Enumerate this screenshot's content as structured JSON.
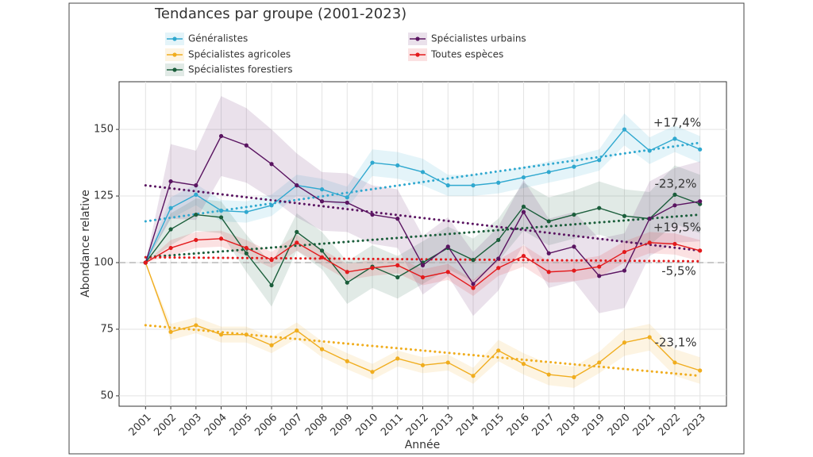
{
  "chart_data": {
    "type": "line",
    "title": "Tendances par groupe (2001-2023)",
    "x_label": "Année",
    "y_label": "Abondance relative",
    "x": [
      2001,
      2002,
      2003,
      2004,
      2005,
      2006,
      2007,
      2008,
      2009,
      2010,
      2011,
      2012,
      2013,
      2014,
      2015,
      2016,
      2017,
      2018,
      2019,
      2020,
      2021,
      2022,
      2023
    ],
    "xlim": [
      1999.95,
      2024.05
    ],
    "xticks": [
      2001,
      2002,
      2003,
      2004,
      2005,
      2006,
      2007,
      2008,
      2009,
      2010,
      2011,
      2012,
      2013,
      2014,
      2015,
      2016,
      2017,
      2018,
      2019,
      2020,
      2021,
      2022,
      2023
    ],
    "ylim": [
      46.1,
      167.9
    ],
    "yticks": [
      50,
      75,
      100,
      125,
      150
    ],
    "reference_line": 100,
    "grid": true,
    "series": [
      {
        "name": "Généralistes",
        "color": "#2fa8cf",
        "label_color": "#52bde6",
        "values": [
          100,
          120.5,
          125.5,
          119.5,
          119,
          121.5,
          129,
          127.5,
          124.5,
          137.5,
          136.5,
          134,
          129,
          129,
          130,
          132,
          134,
          136,
          138.5,
          150,
          142,
          146.5,
          142.5
        ],
        "ci": [
          0,
          4,
          4,
          4,
          4,
          4,
          4,
          4,
          4,
          5,
          5,
          5,
          4,
          4,
          4,
          4,
          4,
          4,
          4,
          6,
          5,
          5,
          5
        ],
        "trend": [
          115.5,
          145
        ],
        "trend_label": "+17,4%"
      },
      {
        "name": "Spécialistes agricoles",
        "color": "#f0ad1e",
        "label_color": "#f2b62b",
        "values": [
          100,
          74,
          76.5,
          73,
          73,
          69,
          74.5,
          67.5,
          63,
          59,
          64,
          61.5,
          62.5,
          57.5,
          67,
          62,
          58,
          57,
          62.5,
          70,
          72,
          62.5,
          59.5
        ],
        "ci": [
          0,
          3,
          3,
          3,
          3,
          3,
          3,
          3,
          3,
          3,
          3,
          3,
          3,
          3,
          4,
          4,
          4,
          4,
          4,
          5,
          5,
          5,
          5
        ],
        "trend": [
          76.5,
          57.5
        ],
        "trend_label": "-23,1%"
      },
      {
        "name": "Spécialistes forestiers",
        "color": "#1b5e3b",
        "label_color": "#2f5a22",
        "values": [
          100,
          112.5,
          118,
          117,
          103.5,
          91.5,
          111.5,
          104.5,
          92.5,
          98.5,
          94.5,
          100,
          105.5,
          101,
          108.5,
          121,
          115.5,
          118,
          120.5,
          117.5,
          116.5,
          125.5,
          122
        ],
        "ci": [
          0,
          6,
          6,
          6,
          7,
          8,
          7,
          7,
          8,
          8,
          8,
          8,
          8,
          8,
          8,
          9,
          9,
          9,
          10,
          10,
          10,
          11,
          11
        ],
        "trend": [
          102,
          118
        ],
        "trend_label": "+19,5%"
      },
      {
        "name": "Spécialistes urbains",
        "color": "#5a1461",
        "label_color": "#6b35a8",
        "values": [
          100,
          130.5,
          129,
          147.5,
          144,
          137,
          129,
          123,
          122.5,
          118,
          116.5,
          99,
          106,
          92,
          101.5,
          119,
          103.5,
          106,
          95,
          97,
          116.5,
          121.5,
          123
        ],
        "ci": [
          0,
          14,
          13,
          15,
          14,
          13,
          12,
          11,
          11,
          11,
          11,
          11,
          11,
          12,
          12,
          12,
          13,
          13,
          14,
          14,
          14,
          14,
          15
        ],
        "trend": [
          129,
          104.5
        ],
        "trend_label": "-23,2%"
      },
      {
        "name": "Toutes espèces",
        "color": "#e31a1c",
        "label_color": "#d42020",
        "values": [
          100,
          105.5,
          108.5,
          109,
          105.5,
          101,
          107.5,
          102,
          96.5,
          98,
          99,
          94.5,
          96.5,
          90.5,
          98,
          102.5,
          96.5,
          97,
          98.5,
          104,
          107.5,
          107,
          104.5
        ],
        "ci": [
          0,
          3,
          3,
          3,
          3,
          3,
          3,
          3,
          3,
          3,
          3,
          3,
          3,
          3,
          3,
          4,
          4,
          4,
          4,
          4,
          4,
          4,
          4
        ],
        "trend": [
          102,
          100.5
        ],
        "trend_label": "-5,5%"
      }
    ]
  }
}
